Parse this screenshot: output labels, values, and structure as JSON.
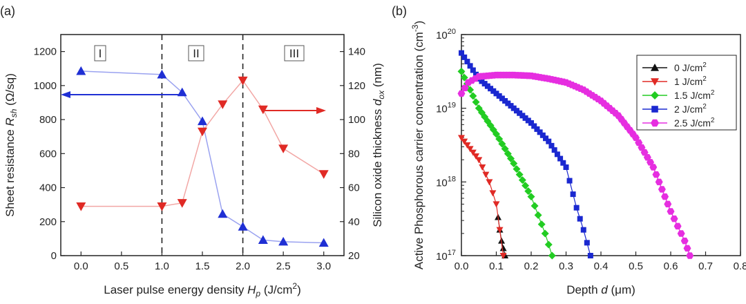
{
  "chart_data": [
    {
      "panel": "(a)",
      "type": "line",
      "xlabel": "Laser pulse energy density ",
      "xlabel_sym": "H",
      "xlabel_sub": "p",
      "xlabel_unit": " (J/cm",
      "xlabel_sup": "2",
      "xlabel_close": ")",
      "ylabel_left": "Sheet resistance ",
      "ylabel_left_sym": "R",
      "ylabel_left_sub": "sh",
      "ylabel_left_unit": " (Ω/sq)",
      "ylabel_right": "Silicon oxide thickness  ",
      "ylabel_right_sym": "d",
      "ylabel_right_sub": "ox",
      "ylabel_right_unit": " (nm)",
      "xlim": [
        -0.25,
        3.25
      ],
      "ylim_left": [
        0,
        1300
      ],
      "ylim_right": [
        20,
        150
      ],
      "xticks": [
        "0.0",
        "0.5",
        "1.0",
        "1.5",
        "2.0",
        "2.5",
        "3.0"
      ],
      "yticks_left": [
        "0",
        "200",
        "400",
        "600",
        "800",
        "1000",
        "1200"
      ],
      "yticks_right": [
        "20",
        "40",
        "60",
        "80",
        "100",
        "120",
        "140"
      ],
      "region_labels": [
        "I",
        "II",
        "III"
      ],
      "dividers_x": [
        1.0,
        2.0
      ],
      "series": [
        {
          "name": "Sheet resistance",
          "axis": "left",
          "color": "#1f2fd4",
          "line_color": "#9aa2f0",
          "marker": "triangle-up",
          "x": [
            0.0,
            1.0,
            1.25,
            1.5,
            1.75,
            2.0,
            2.25,
            2.5,
            3.0
          ],
          "y": [
            1085,
            1065,
            960,
            790,
            245,
            170,
            92,
            82,
            75
          ]
        },
        {
          "name": "Silicon oxide thickness",
          "axis": "right",
          "color": "#e02a25",
          "line_color": "#f2a7a5",
          "marker": "triangle-down",
          "x": [
            0.0,
            1.0,
            1.25,
            1.5,
            1.75,
            2.0,
            2.25,
            2.5,
            3.0
          ],
          "y": [
            49,
            49,
            51,
            93,
            109,
            123,
            106,
            83,
            68
          ]
        }
      ]
    },
    {
      "panel": "(b)",
      "type": "line",
      "xlabel": "Depth ",
      "xlabel_sym": "d",
      "xlabel_unit": " (μm)",
      "ylabel": "Active Phosphorous carrier concentration (cm",
      "ylabel_sup": "-3",
      "ylabel_close": ")",
      "yscale": "log",
      "xlim": [
        0.0,
        0.8
      ],
      "ylim_exp": [
        17,
        20
      ],
      "xticks": [
        "0.0",
        "0.1",
        "0.2",
        "0.3",
        "0.4",
        "0.5",
        "0.6",
        "0.7",
        "0.8"
      ],
      "ytick_base": "10",
      "ytick_exps": [
        "17",
        "18",
        "19",
        "20"
      ],
      "legend_position": "top-right",
      "series": [
        {
          "name": "0 J/cm",
          "sup": "2",
          "color": "#111111",
          "marker": "triangle-up",
          "x": [
            0.105,
            0.11,
            0.115,
            0.12,
            0.125
          ],
          "logy": [
            17.52,
            17.35,
            17.2,
            17.1,
            17.0
          ]
        },
        {
          "name": "1 J/cm",
          "sup": "2",
          "color": "#e02a25",
          "marker": "triangle-down",
          "x": [
            0.0,
            0.05,
            0.08,
            0.1,
            0.12
          ],
          "logy": [
            18.6,
            18.3,
            18.0,
            17.7,
            17.0
          ]
        },
        {
          "name": "1.5 J/cm",
          "sup": "2",
          "color": "#22cc22",
          "marker": "diamond",
          "x": [
            0.0,
            0.05,
            0.1,
            0.15,
            0.2,
            0.24,
            0.26
          ],
          "logy": [
            19.5,
            19.0,
            18.65,
            18.25,
            17.8,
            17.3,
            17.0
          ]
        },
        {
          "name": "2 J/cm",
          "sup": "2",
          "color": "#1a28d0",
          "marker": "square",
          "x": [
            0.0,
            0.05,
            0.1,
            0.15,
            0.2,
            0.25,
            0.3,
            0.33,
            0.35,
            0.37
          ],
          "logy": [
            19.75,
            19.4,
            19.2,
            19.0,
            18.8,
            18.55,
            18.2,
            17.65,
            17.35,
            17.0
          ]
        },
        {
          "name": "2.5 J/cm",
          "sup": "2",
          "color": "#e62ee0",
          "marker": "hexagon",
          "x": [
            0.0,
            0.02,
            0.05,
            0.1,
            0.15,
            0.2,
            0.25,
            0.3,
            0.35,
            0.4,
            0.45,
            0.5,
            0.55,
            0.6,
            0.62,
            0.64,
            0.655
          ],
          "logy": [
            19.2,
            19.35,
            19.43,
            19.45,
            19.45,
            19.44,
            19.4,
            19.35,
            19.25,
            19.1,
            18.9,
            18.6,
            18.2,
            17.6,
            17.4,
            17.2,
            17.0
          ]
        }
      ]
    }
  ]
}
